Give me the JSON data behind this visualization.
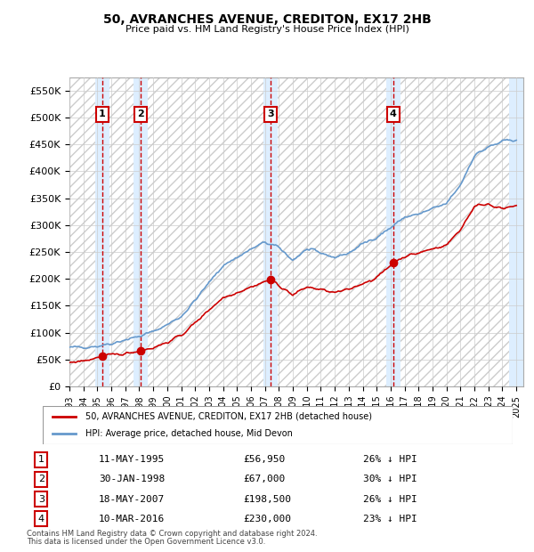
{
  "title": "50, AVRANCHES AVENUE, CREDITON, EX17 2HB",
  "subtitle": "Price paid vs. HM Land Registry's House Price Index (HPI)",
  "ylabel": "",
  "xlim": [
    1993.0,
    2025.5
  ],
  "ylim": [
    0,
    575000
  ],
  "yticks": [
    0,
    50000,
    100000,
    150000,
    200000,
    250000,
    300000,
    350000,
    400000,
    450000,
    500000,
    550000
  ],
  "ytick_labels": [
    "£0",
    "£50K",
    "£100K",
    "£150K",
    "£200K",
    "£250K",
    "£300K",
    "£350K",
    "£400K",
    "£450K",
    "£500K",
    "£550K"
  ],
  "xticks": [
    1993,
    1994,
    1995,
    1996,
    1997,
    1998,
    1999,
    2000,
    2001,
    2002,
    2003,
    2004,
    2005,
    2006,
    2007,
    2008,
    2009,
    2010,
    2011,
    2012,
    2013,
    2014,
    2015,
    2016,
    2017,
    2018,
    2019,
    2020,
    2021,
    2022,
    2023,
    2024,
    2025
  ],
  "transactions": [
    {
      "num": 1,
      "year": 1995.36,
      "price": 56950,
      "label": "1"
    },
    {
      "num": 2,
      "year": 1998.08,
      "price": 67000,
      "label": "2"
    },
    {
      "num": 3,
      "year": 2007.38,
      "price": 198500,
      "label": "3"
    },
    {
      "num": 4,
      "year": 2016.19,
      "price": 230000,
      "label": "4"
    }
  ],
  "table_rows": [
    {
      "num": 1,
      "date": "11-MAY-1995",
      "price": "£56,950",
      "hpi": "26% ↓ HPI"
    },
    {
      "num": 2,
      "date": "30-JAN-1998",
      "price": "£67,000",
      "hpi": "30% ↓ HPI"
    },
    {
      "num": 3,
      "date": "18-MAY-2007",
      "price": "£198,500",
      "hpi": "26% ↓ HPI"
    },
    {
      "num": 4,
      "date": "10-MAR-2016",
      "price": "£230,000",
      "hpi": "23% ↓ HPI"
    }
  ],
  "legend_line1": "50, AVRANCHES AVENUE, CREDITON, EX17 2HB (detached house)",
  "legend_line2": "HPI: Average price, detached house, Mid Devon",
  "footer1": "Contains HM Land Registry data © Crown copyright and database right 2024.",
  "footer2": "This data is licensed under the Open Government Licence v3.0.",
  "red_color": "#cc0000",
  "blue_color": "#6699cc",
  "bg_hatch_color": "#dddddd",
  "transaction_shade_color": "#ddeeff"
}
